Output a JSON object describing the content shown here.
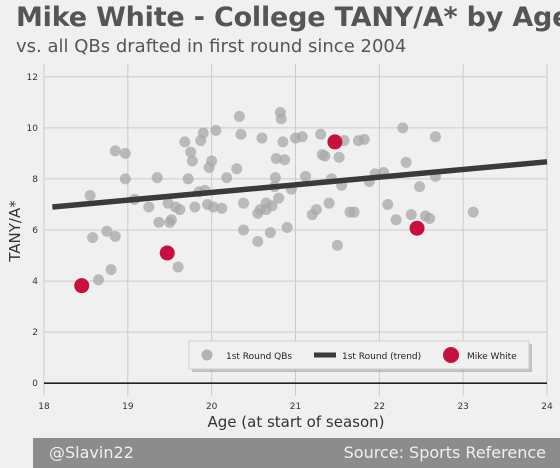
{
  "title": "Mike White - College TANY/A* by Age",
  "subtitle": "vs. all QBs drafted in first round since 2004",
  "footer": {
    "left": "@Slavin22",
    "right": "Source: Sports Reference"
  },
  "colors": {
    "background": "#f0f0f0",
    "qb_points": "#a8a8a8",
    "trend": "#3a3a3a",
    "highlight": "#c8103e",
    "footer_bg": "#8c8c8c"
  },
  "chart_data": {
    "type": "scatter",
    "xlabel": "Age (at start of season)",
    "ylabel": "TANY/A*",
    "xlim": [
      18,
      24
    ],
    "ylim": [
      -0.5,
      12.5
    ],
    "x_ticks": [
      "18",
      "19",
      "20",
      "21",
      "22",
      "23",
      "24"
    ],
    "y_ticks": [
      "0",
      "2",
      "4",
      "6",
      "8",
      "10",
      "12"
    ],
    "grid": true,
    "legend_position": "bottom-right",
    "series": [
      {
        "name": "1st Round QBs",
        "kind": "scatter",
        "color": "#a8a8a8",
        "points": [
          [
            18.55,
            7.35
          ],
          [
            18.58,
            5.7
          ],
          [
            18.65,
            4.05
          ],
          [
            18.75,
            5.95
          ],
          [
            18.85,
            5.75
          ],
          [
            18.8,
            4.45
          ],
          [
            18.85,
            9.1
          ],
          [
            18.97,
            9.0
          ],
          [
            18.97,
            8.0
          ],
          [
            19.08,
            7.2
          ],
          [
            19.25,
            6.9
          ],
          [
            19.35,
            8.05
          ],
          [
            19.37,
            6.3
          ],
          [
            19.48,
            7.05
          ],
          [
            19.5,
            6.3
          ],
          [
            19.52,
            6.4
          ],
          [
            19.57,
            6.9
          ],
          [
            19.6,
            4.55
          ],
          [
            19.62,
            6.8
          ],
          [
            19.68,
            9.45
          ],
          [
            19.72,
            8.0
          ],
          [
            19.75,
            9.05
          ],
          [
            19.77,
            8.7
          ],
          [
            19.8,
            6.9
          ],
          [
            19.85,
            7.5
          ],
          [
            19.87,
            9.5
          ],
          [
            19.9,
            9.8
          ],
          [
            19.92,
            7.55
          ],
          [
            19.95,
            7.0
          ],
          [
            19.97,
            8.45
          ],
          [
            20.0,
            8.7
          ],
          [
            20.02,
            6.9
          ],
          [
            20.05,
            9.9
          ],
          [
            20.12,
            6.85
          ],
          [
            20.18,
            8.05
          ],
          [
            20.3,
            8.4
          ],
          [
            20.33,
            10.45
          ],
          [
            20.35,
            9.75
          ],
          [
            20.38,
            6.0
          ],
          [
            20.38,
            7.05
          ],
          [
            20.55,
            6.65
          ],
          [
            20.55,
            5.55
          ],
          [
            20.58,
            6.8
          ],
          [
            20.6,
            9.6
          ],
          [
            20.65,
            7.05
          ],
          [
            20.65,
            6.8
          ],
          [
            20.7,
            5.9
          ],
          [
            20.72,
            6.95
          ],
          [
            20.75,
            7.7
          ],
          [
            20.76,
            8.05
          ],
          [
            20.77,
            8.8
          ],
          [
            20.8,
            7.25
          ],
          [
            20.82,
            10.6
          ],
          [
            20.83,
            10.35
          ],
          [
            20.85,
            9.45
          ],
          [
            20.87,
            8.75
          ],
          [
            20.9,
            6.1
          ],
          [
            20.95,
            7.6
          ],
          [
            21.0,
            9.6
          ],
          [
            21.08,
            9.65
          ],
          [
            21.12,
            8.1
          ],
          [
            21.2,
            6.6
          ],
          [
            21.25,
            6.8
          ],
          [
            21.3,
            9.75
          ],
          [
            21.32,
            8.95
          ],
          [
            21.35,
            8.9
          ],
          [
            21.4,
            7.05
          ],
          [
            21.43,
            8.0
          ],
          [
            21.5,
            5.4
          ],
          [
            21.52,
            8.85
          ],
          [
            21.55,
            7.75
          ],
          [
            21.58,
            9.5
          ],
          [
            21.65,
            6.7
          ],
          [
            21.7,
            6.7
          ],
          [
            21.75,
            9.5
          ],
          [
            21.82,
            9.55
          ],
          [
            21.88,
            7.9
          ],
          [
            21.95,
            8.2
          ],
          [
            22.05,
            8.25
          ],
          [
            22.1,
            7.0
          ],
          [
            22.2,
            6.4
          ],
          [
            22.28,
            10.0
          ],
          [
            22.32,
            8.65
          ],
          [
            22.38,
            6.6
          ],
          [
            22.48,
            7.7
          ],
          [
            22.55,
            6.55
          ],
          [
            22.6,
            6.45
          ],
          [
            22.67,
            9.65
          ],
          [
            22.67,
            8.1
          ],
          [
            23.12,
            6.7
          ]
        ]
      },
      {
        "name": "1st Round (trend)",
        "kind": "line",
        "color": "#3a3a3a",
        "points": [
          [
            18.1,
            6.9
          ],
          [
            24.0,
            8.67
          ]
        ]
      },
      {
        "name": "Mike White",
        "kind": "scatter",
        "color": "#c8103e",
        "points": [
          [
            18.45,
            3.82
          ],
          [
            19.47,
            5.1
          ],
          [
            21.47,
            9.45
          ],
          [
            22.45,
            6.07
          ]
        ]
      }
    ]
  }
}
